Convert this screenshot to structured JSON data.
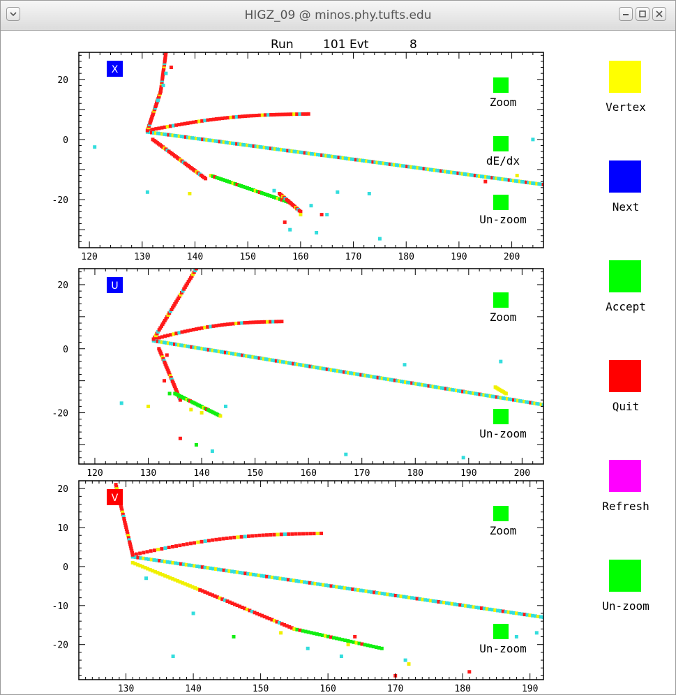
{
  "window": {
    "title": "HIGZ_09 @ minos.phy.tufts.edu"
  },
  "header": {
    "run_label": "Run",
    "run_number": "101",
    "evt_label": "Evt",
    "evt_number": "8"
  },
  "colors": {
    "red": "#ff1a1a",
    "cyan": "#33dddd",
    "yellow": "#f0f000",
    "green": "#11ee11",
    "blue": "#0b0bf5",
    "magenta": "#ff00ff",
    "frame": "#000000"
  },
  "side_buttons": [
    {
      "label": "Vertex",
      "color": "#ffff00",
      "icon": "yellow-square-icon"
    },
    {
      "label": "Next",
      "color": "#0000ff",
      "icon": "blue-square-icon"
    },
    {
      "label": "Accept",
      "color": "#00ff00",
      "icon": "green-square-icon"
    },
    {
      "label": "Quit",
      "color": "#ff0000",
      "icon": "red-square-icon"
    },
    {
      "label": "Refresh",
      "color": "#ff00ff",
      "icon": "magenta-square-icon"
    },
    {
      "label": "Un-zoom",
      "color": "#00ff00",
      "icon": "green-square-icon"
    }
  ],
  "chart_data": [
    {
      "type": "scatter",
      "view_label": "X",
      "view_label_color": "#0000ff",
      "xlim": [
        118,
        206
      ],
      "ylim": [
        -36,
        29
      ],
      "x_ticks": [
        "120",
        "130",
        "140",
        "150",
        "160",
        "170",
        "180",
        "190",
        "200"
      ],
      "y_ticks": [
        "20",
        "0",
        "-20"
      ],
      "grid": false,
      "buttons": [
        {
          "label": "Zoom",
          "color": "#00ff00"
        },
        {
          "label": "dE/dx",
          "color": "#00ff00"
        },
        {
          "label": "Un-zoom",
          "color": "#00ff00"
        }
      ],
      "tracks": [
        {
          "color": "red",
          "x": [
            131,
            161.5
          ],
          "y": [
            3,
            8.5
          ],
          "curve": 1.5,
          "step": 0.6
        },
        {
          "color": "cyan",
          "x": [
            131,
            206
          ],
          "y": [
            2.5,
            -15
          ],
          "step": 0.45
        },
        {
          "color": "red",
          "x": [
            131,
            133.5
          ],
          "y": [
            3,
            16
          ],
          "step": 0.35
        },
        {
          "color": "red",
          "x": [
            133.5,
            134.5
          ],
          "y": [
            16,
            29
          ],
          "step": 0.3
        },
        {
          "color": "red",
          "x": [
            132,
            142
          ],
          "y": [
            0,
            -13
          ],
          "step": 0.45
        },
        {
          "color": "green",
          "x": [
            143,
            158
          ],
          "y": [
            -12,
            -21
          ],
          "step": 0.5
        },
        {
          "color": "red",
          "x": [
            156,
            160
          ],
          "y": [
            -18,
            -24
          ],
          "step": 0.4
        }
      ],
      "hits": [
        [
          121,
          -2.5,
          "cyan"
        ],
        [
          131,
          -17.5,
          "cyan"
        ],
        [
          139,
          -18,
          "yellow"
        ],
        [
          155,
          -17,
          "cyan"
        ],
        [
          162,
          -22,
          "cyan"
        ],
        [
          165,
          -25,
          "cyan"
        ],
        [
          157,
          -27.5,
          "red"
        ],
        [
          160,
          -25,
          "yellow"
        ],
        [
          163,
          -31,
          "cyan"
        ],
        [
          167,
          -17.5,
          "cyan"
        ],
        [
          173,
          -18,
          "cyan"
        ],
        [
          175,
          -33,
          "cyan"
        ],
        [
          195,
          -14,
          "red"
        ],
        [
          204,
          0,
          "cyan"
        ],
        [
          201,
          -12,
          "yellow"
        ],
        [
          158,
          -30,
          "cyan"
        ],
        [
          164,
          -25,
          "red"
        ],
        [
          134.5,
          22,
          "cyan"
        ],
        [
          134,
          18,
          "cyan"
        ],
        [
          135.5,
          24,
          "red"
        ],
        [
          133,
          13,
          "cyan"
        ]
      ]
    },
    {
      "type": "scatter",
      "view_label": "U",
      "view_label_color": "#0000ff",
      "xlim": [
        117,
        204
      ],
      "ylim": [
        -36,
        25
      ],
      "x_ticks": [
        "120",
        "130",
        "140",
        "150",
        "160",
        "170",
        "180",
        "190",
        "200"
      ],
      "y_ticks": [
        "20",
        "0",
        "-20"
      ],
      "grid": false,
      "buttons": [
        {
          "label": "Zoom",
          "color": "#00ff00"
        },
        {
          "label": "Un-zoom",
          "color": "#00ff00"
        }
      ],
      "tracks": [
        {
          "color": "red",
          "x": [
            131,
            155
          ],
          "y": [
            3,
            8.5
          ],
          "curve": 1.5,
          "step": 0.6
        },
        {
          "color": "cyan",
          "x": [
            131,
            204
          ],
          "y": [
            2.5,
            -17.5
          ],
          "step": 0.45
        },
        {
          "color": "red",
          "x": [
            131,
            139
          ],
          "y": [
            3,
            25
          ],
          "step": 0.5
        },
        {
          "color": "red",
          "x": [
            132,
            136
          ],
          "y": [
            0,
            -16
          ],
          "step": 0.4
        },
        {
          "color": "green",
          "x": [
            135,
            143.5
          ],
          "y": [
            -14,
            -21
          ],
          "step": 0.4
        },
        {
          "color": "yellow",
          "x": [
            195,
            197
          ],
          "y": [
            -12,
            -14
          ],
          "step": 0.4
        }
      ],
      "hits": [
        [
          125,
          -17,
          "cyan"
        ],
        [
          130,
          -18,
          "yellow"
        ],
        [
          136,
          -28,
          "red"
        ],
        [
          139,
          -30,
          "green"
        ],
        [
          142,
          -32,
          "cyan"
        ],
        [
          144.5,
          -18,
          "cyan"
        ],
        [
          134,
          -14,
          "green"
        ],
        [
          138,
          -19,
          "yellow"
        ],
        [
          178,
          -5,
          "cyan"
        ],
        [
          196,
          -4,
          "cyan"
        ],
        [
          167,
          -33,
          "cyan"
        ],
        [
          189,
          -34,
          "cyan"
        ],
        [
          133.5,
          -2,
          "red"
        ],
        [
          133,
          -10,
          "red"
        ],
        [
          140,
          -20,
          "yellow"
        ]
      ]
    },
    {
      "type": "scatter",
      "view_label": "V",
      "view_label_color": "#ff0000",
      "xlim": [
        123,
        192
      ],
      "ylim": [
        -29,
        22
      ],
      "x_ticks": [
        "130",
        "140",
        "150",
        "160",
        "170",
        "180",
        "190"
      ],
      "y_ticks": [
        "20",
        "10",
        "0",
        "-10",
        "-20"
      ],
      "grid": false,
      "buttons": [
        {
          "label": "Zoom",
          "color": "#00ff00"
        },
        {
          "label": "Un-zoom",
          "color": "#00ff00"
        }
      ],
      "tracks": [
        {
          "color": "red",
          "x": [
            131,
            159
          ],
          "y": [
            3,
            8.5
          ],
          "curve": 1.5,
          "step": 0.6
        },
        {
          "color": "cyan",
          "x": [
            131,
            192
          ],
          "y": [
            2.5,
            -13
          ],
          "step": 0.45
        },
        {
          "color": "red",
          "x": [
            128.5,
            131
          ],
          "y": [
            21,
            3
          ],
          "step": 0.35
        },
        {
          "color": "yellow",
          "x": [
            131,
            141
          ],
          "y": [
            1,
            -6
          ],
          "step": 0.5
        },
        {
          "color": "red",
          "x": [
            141,
            155
          ],
          "y": [
            -6,
            -16
          ],
          "step": 0.5
        },
        {
          "color": "green",
          "x": [
            155,
            168
          ],
          "y": [
            -16,
            -21
          ],
          "step": 0.5
        }
      ],
      "hits": [
        [
          133,
          -3,
          "cyan"
        ],
        [
          137,
          -23,
          "cyan"
        ],
        [
          140,
          -12,
          "cyan"
        ],
        [
          146,
          -18,
          "green"
        ],
        [
          153,
          -17,
          "yellow"
        ],
        [
          157,
          -21,
          "cyan"
        ],
        [
          162,
          -23,
          "cyan"
        ],
        [
          164,
          -18,
          "red"
        ],
        [
          170,
          -28,
          "red"
        ],
        [
          172,
          -25,
          "yellow"
        ],
        [
          171.5,
          -24,
          "cyan"
        ],
        [
          181,
          -27,
          "red"
        ],
        [
          188,
          -18,
          "cyan"
        ],
        [
          191,
          -17,
          "cyan"
        ],
        [
          163,
          -20,
          "yellow"
        ]
      ]
    }
  ]
}
